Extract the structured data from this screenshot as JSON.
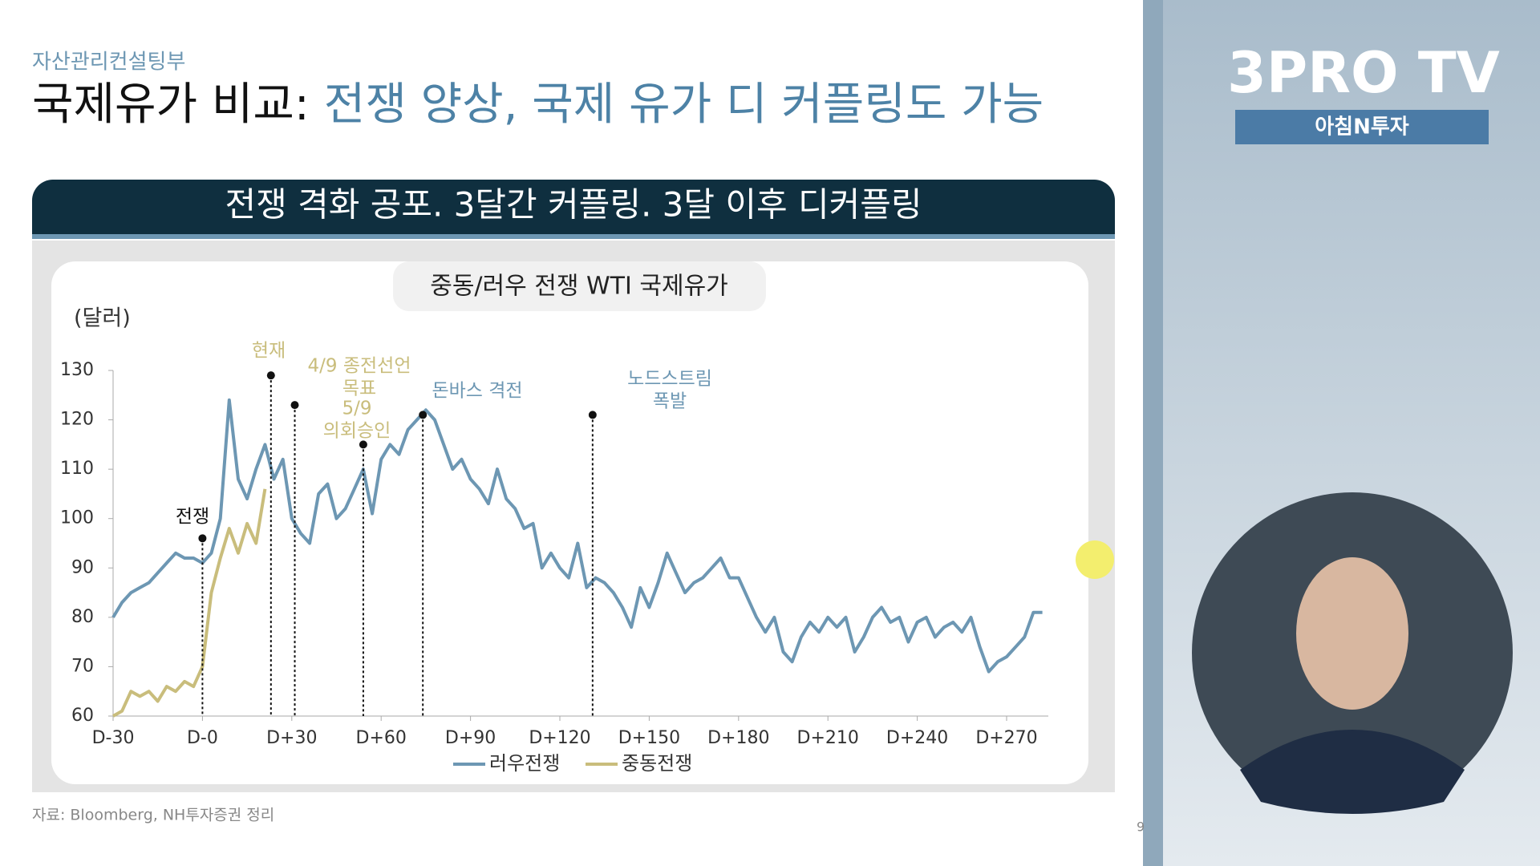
{
  "header": {
    "department": "자산관리컨설팅부",
    "title_prefix": "국제유가 비교:",
    "title": "전쟁 양상, 국제 유가 디 커플링도 가능",
    "banner": "전쟁 격화 공포. 3달간 커플링. 3달 이후 디커플링",
    "source": "자료: Bloomberg, NH투자증권 정리",
    "page": "9"
  },
  "channel": {
    "logo": "3PRO TV",
    "program": "아침N투자"
  },
  "chart_data": {
    "type": "line",
    "title": "중동/러우 전쟁 WTI 국제유가",
    "y_label": "(달러)",
    "series": [
      {
        "name": "러우전쟁",
        "color": "#6d97b3",
        "x": [
          -30,
          -27,
          -24,
          -21,
          -18,
          -15,
          -12,
          -9,
          -6,
          -3,
          0,
          3,
          6,
          9,
          12,
          15,
          18,
          21,
          24,
          27,
          30,
          33,
          36,
          39,
          42,
          45,
          48,
          51,
          54,
          57,
          60,
          63,
          66,
          69,
          72,
          75,
          78,
          81,
          84,
          87,
          90,
          93,
          96,
          99,
          102,
          105,
          108,
          111,
          114,
          117,
          120,
          123,
          126,
          129,
          132,
          135,
          138,
          141,
          144,
          147,
          150,
          153,
          156,
          159,
          162,
          165,
          168,
          171,
          174,
          177,
          180,
          183,
          186,
          189,
          192,
          195,
          198,
          201,
          204,
          207,
          210,
          213,
          216,
          219,
          222,
          225,
          228,
          231,
          234,
          237,
          240,
          243,
          246,
          249,
          252,
          255,
          258,
          261,
          264,
          267,
          270,
          273,
          276,
          279,
          282
        ],
        "values": [
          80,
          83,
          85,
          86,
          87,
          89,
          91,
          93,
          92,
          92,
          91,
          93,
          100,
          124,
          108,
          104,
          110,
          115,
          108,
          112,
          100,
          97,
          95,
          105,
          107,
          100,
          102,
          106,
          110,
          101,
          112,
          115,
          113,
          118,
          120,
          122,
          120,
          115,
          110,
          112,
          108,
          106,
          103,
          110,
          104,
          102,
          98,
          99,
          90,
          93,
          90,
          88,
          95,
          86,
          88,
          87,
          85,
          82,
          78,
          86,
          82,
          87,
          93,
          89,
          85,
          87,
          88,
          90,
          92,
          88,
          88,
          84,
          80,
          77,
          80,
          73,
          71,
          76,
          79,
          77,
          80,
          78,
          80,
          73,
          76,
          80,
          82,
          79,
          80,
          75,
          79,
          80,
          76,
          78,
          79,
          77,
          80,
          74,
          69,
          71,
          72,
          74,
          76,
          81,
          81
        ]
      },
      {
        "name": "중동전쟁",
        "color": "#c9bd7c",
        "x": [
          -30,
          -27,
          -24,
          -21,
          -18,
          -15,
          -12,
          -9,
          -6,
          -3,
          0,
          3,
          6,
          9,
          12,
          15,
          18,
          21
        ],
        "values": [
          60,
          61,
          65,
          64,
          65,
          63,
          66,
          65,
          67,
          66,
          70,
          85,
          92,
          98,
          93,
          99,
          95,
          106
        ]
      }
    ],
    "xlim": [
      -30,
      284
    ],
    "xticks": [
      {
        "value": -30,
        "label": "D-30"
      },
      {
        "value": 0,
        "label": "D-0"
      },
      {
        "value": 30,
        "label": "D+30"
      },
      {
        "value": 60,
        "label": "D+60"
      },
      {
        "value": 90,
        "label": "D+90"
      },
      {
        "value": 120,
        "label": "D+120"
      },
      {
        "value": 150,
        "label": "D+150"
      },
      {
        "value": 180,
        "label": "D+180"
      },
      {
        "value": 210,
        "label": "D+210"
      },
      {
        "value": 240,
        "label": "D+240"
      },
      {
        "value": 270,
        "label": "D+270"
      }
    ],
    "ylim": [
      60,
      130
    ],
    "yticks": [
      60,
      70,
      80,
      90,
      100,
      110,
      120,
      130
    ],
    "events": [
      {
        "label": [
          "전쟁"
        ],
        "x": 0,
        "y": 96,
        "color": "#111111"
      },
      {
        "label": [
          "현재"
        ],
        "x": 23,
        "y": 129,
        "color": "#c9bd7c"
      },
      {
        "label": [
          "4/9 종전선언",
          "목표"
        ],
        "x": 31,
        "y": 123,
        "color": "#c9bd7c"
      },
      {
        "label": [
          "5/9",
          "의회승인"
        ],
        "x": 54,
        "y": 115,
        "color": "#c9bd7c"
      },
      {
        "label": [
          "돈바스 격전"
        ],
        "x": 74,
        "y": 121,
        "color": "#6d97b3"
      },
      {
        "label": [
          "노드스트림",
          "폭발"
        ],
        "x": 131,
        "y": 121,
        "color": "#6d97b3"
      }
    ]
  }
}
